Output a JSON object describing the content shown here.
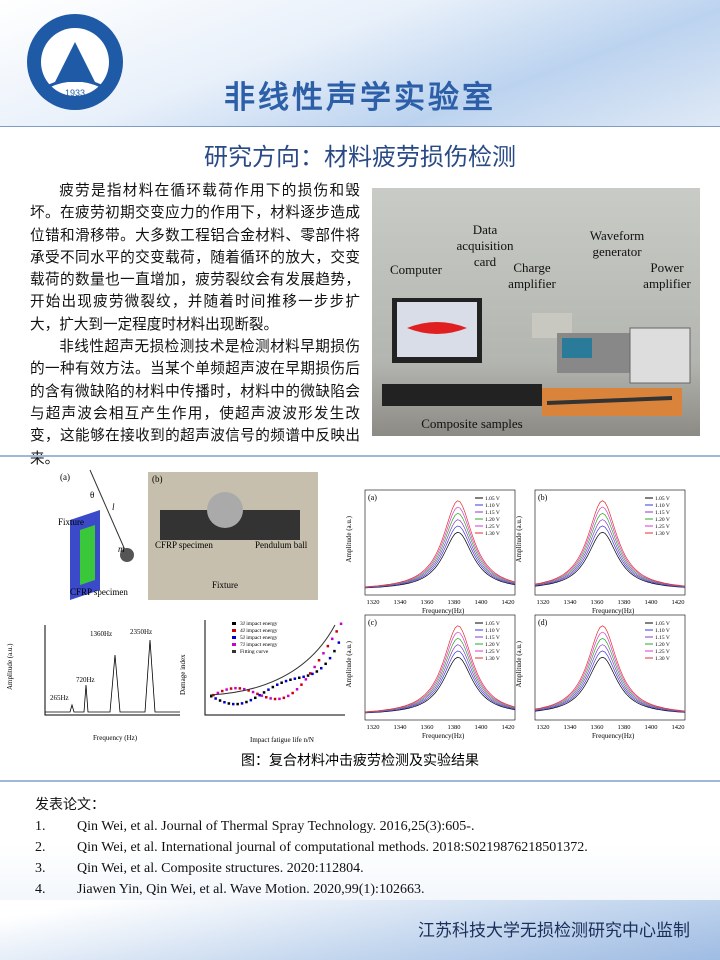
{
  "header": {
    "logo_year": "1933",
    "title": "非线性声学实验室"
  },
  "subtitle": "研究方向：材料疲劳损伤检测",
  "paragraphs": [
    "疲劳是指材料在循环载荷作用下的损伤和毁坏。在疲劳初期交变应力的作用下，材料逐步造成位错和滑移带。大多数工程铝合金材料、零部件将承受不同水平的交变载荷，随着循环的放大，交变载荷的数量也一直增加，疲劳裂纹会有发展趋势，开始出现疲劳微裂纹，并随着时间推移一步步扩大，扩大到一定程度时材料出现断裂。",
    "非线性超声无损检测技术是检测材料早期损伤的一种有效方法。当某个单频超声波在早期损伤后的含有微缺陷的材料中传播时，材料中的微缺陷会与超声波会相互产生作用，使超声波波形发生改变，这能够在接收到的超声波信号的频谱中反映出来。"
  ],
  "photo_labels": [
    "Data acquisition card",
    "Waveform generator",
    "Computer",
    "Charge amplifier",
    "Power amplifier",
    "Composite samples"
  ],
  "figure": {
    "pendulum": {
      "panel": "(a)",
      "labels": [
        "Fixture",
        "CFRP specimen",
        "l",
        "m",
        "θ"
      ]
    },
    "specimen": {
      "panel": "(b)",
      "labels": [
        "CFRP specimen",
        "Pendulum ball",
        "Fixture"
      ]
    },
    "spectrum": {
      "peaks": [
        "265Hz",
        "720Hz",
        "1360Hz",
        "2350Hz"
      ],
      "xlabel": "Frequency (Hz)",
      "ylabel": "Amplitude (a.u.)"
    },
    "damage": {
      "legend": [
        "3J impact energy",
        "4J impact energy",
        "5J impact energy",
        "7J impact energy",
        "Fitting curve"
      ],
      "xlabel": "Impact fatigue life n/N",
      "ylabel": "Damage index"
    },
    "resonance": {
      "panels": [
        "(a)",
        "(b)",
        "(c)",
        "(d)"
      ],
      "legend": [
        "1.05 V",
        "1.10 V",
        "1.15 V",
        "1.20 V",
        "1.25 V",
        "1.30 V"
      ],
      "colors": [
        "#000000",
        "#3a3ad8",
        "#8a3ac8",
        "#2aa82a",
        "#d838c8",
        "#e03030"
      ],
      "xlabel": "Frequency(Hz)",
      "ylabel": "Amplitude (a.u.)",
      "xticks": [
        "1320",
        "1340",
        "1360",
        "1380",
        "1400",
        "1420"
      ]
    },
    "caption": "图：复合材料冲击疲劳检测及实验结果"
  },
  "publications": {
    "heading": "发表论文：",
    "items": [
      [
        "1.",
        "Qin Wei, et al. Journal of Thermal Spray Technology. 2016,25(3):605-."
      ],
      [
        "2.",
        "Qin Wei, et al. International journal of computational methods. 2018:S0219876218501372."
      ],
      [
        "3.",
        "Qin Wei, et al. Composite structures. 2020:112804."
      ],
      [
        "4.",
        "Jiawen Yin, Qin Wei, et al. Wave Motion. 2020,99(1):102663."
      ]
    ]
  },
  "footer": "江苏科技大学无损检测研究中心监制"
}
